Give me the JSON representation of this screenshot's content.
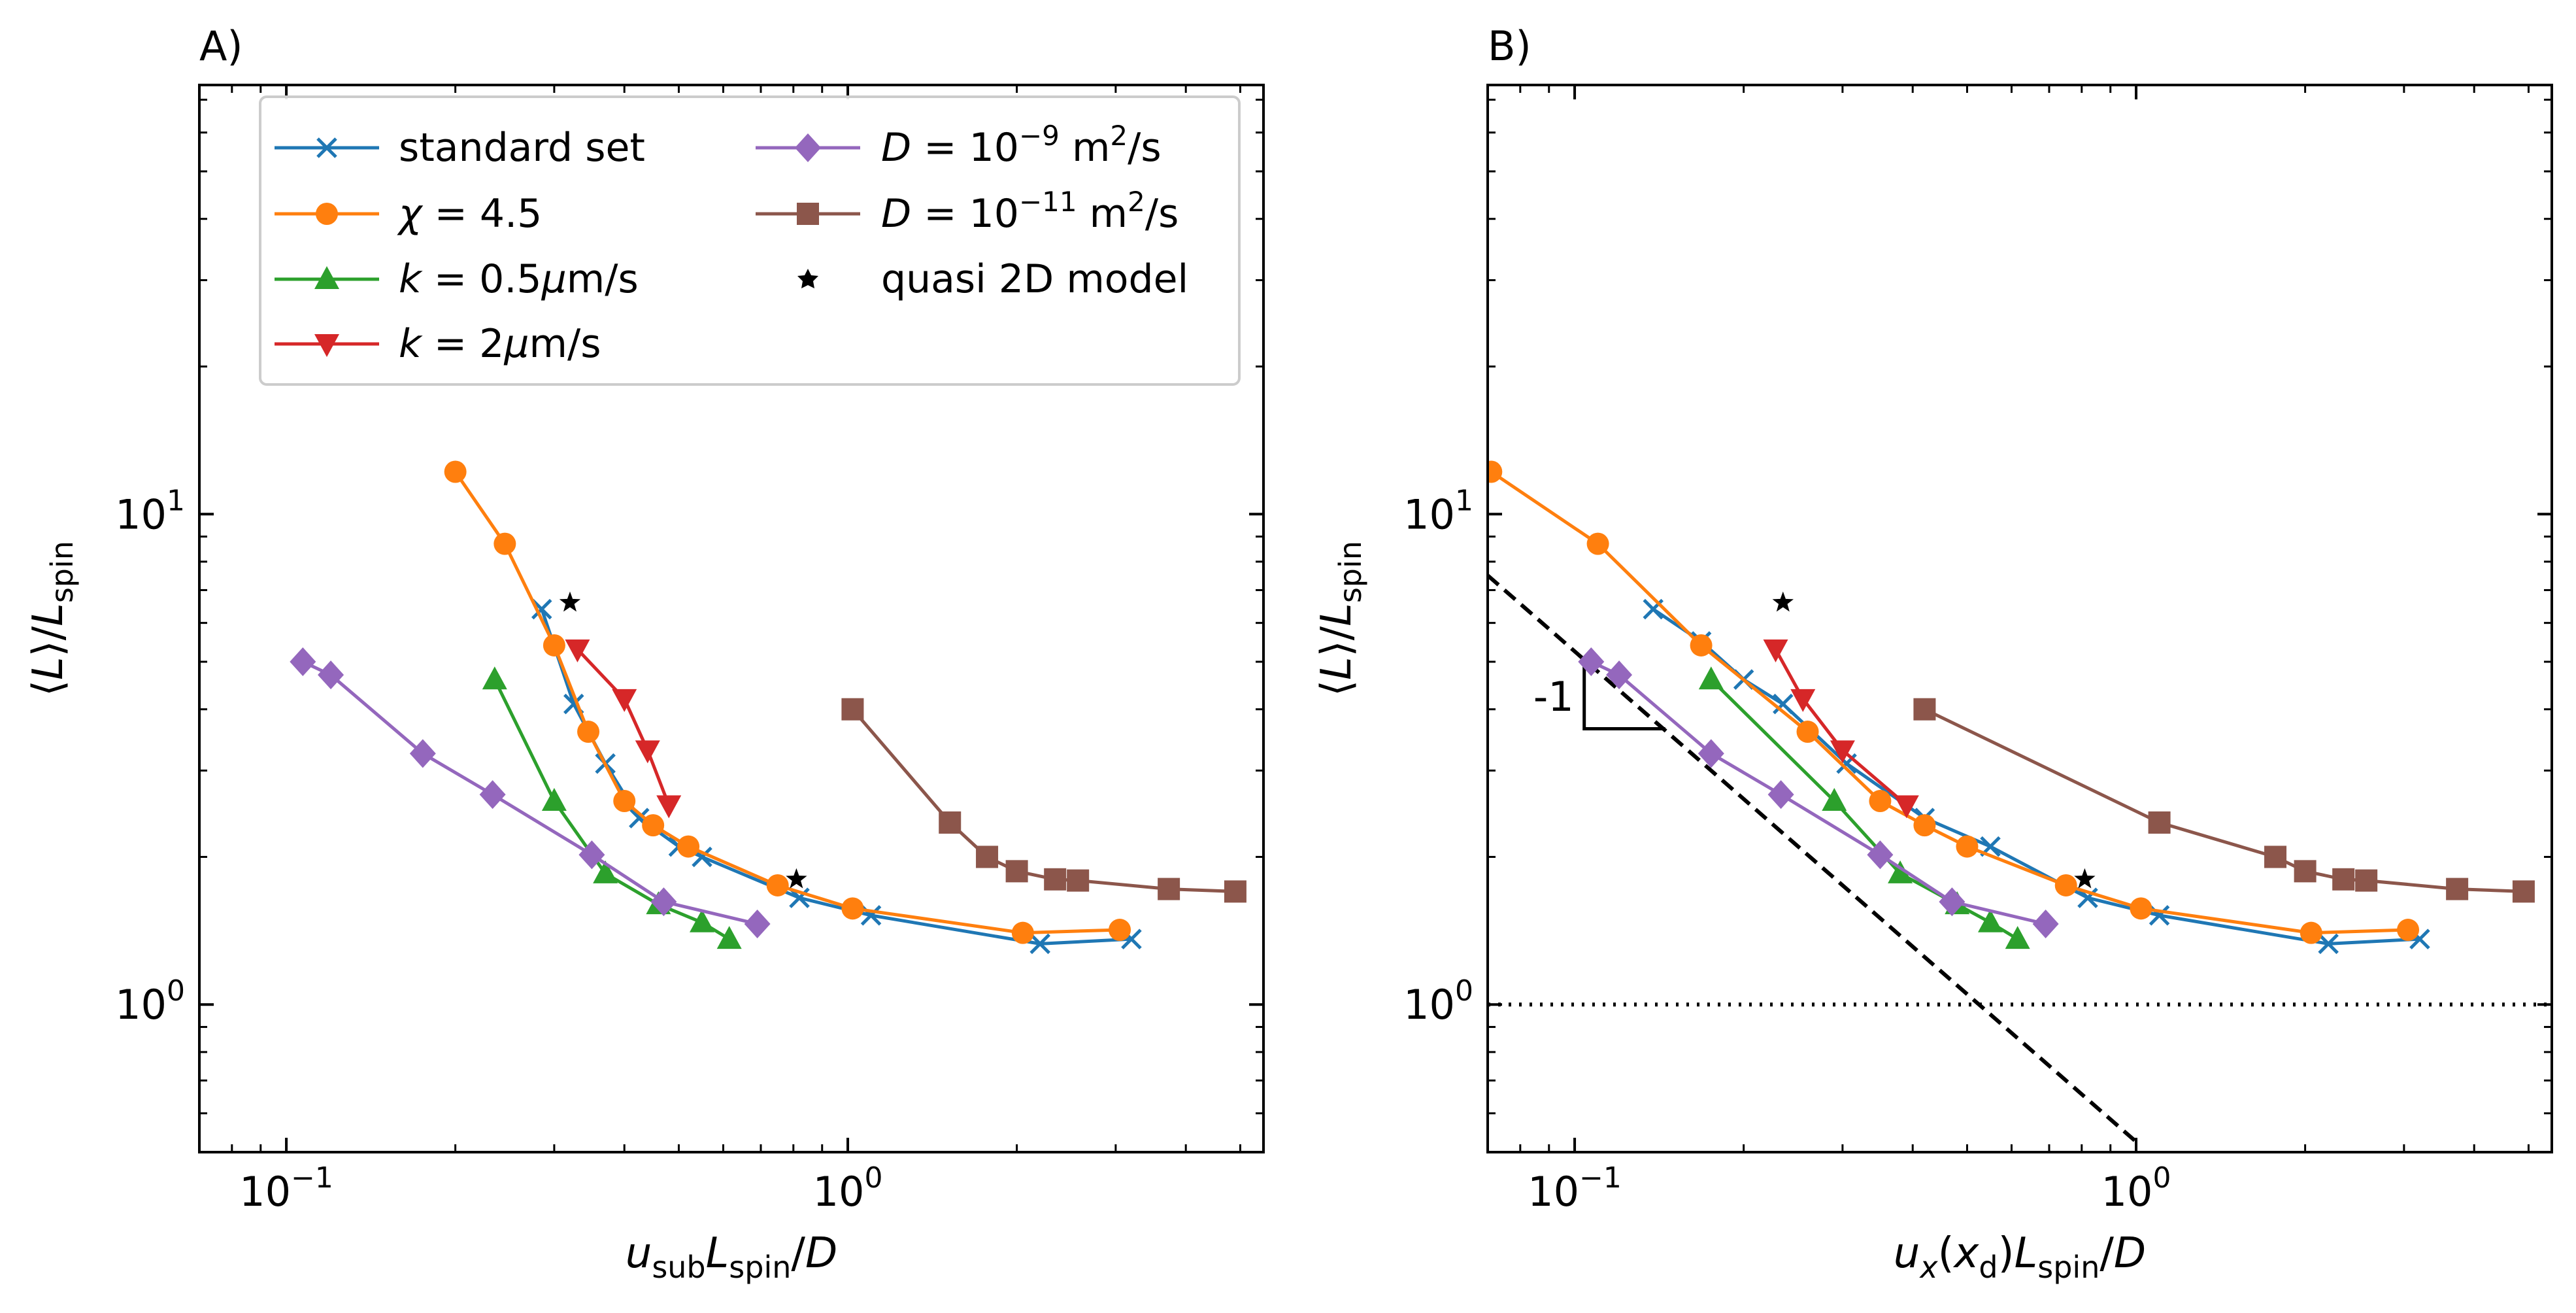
{
  "colors": {
    "standard": "#1f77b4",
    "chi": "#ff7f0e",
    "k05": "#2ca02c",
    "k2": "#d62728",
    "D9": "#9467bd",
    "D11": "#8c564b",
    "quasi": "#000000"
  },
  "chart_data": [
    {
      "type": "line",
      "panel_label": "A)",
      "xscale": "log",
      "yscale": "log",
      "xlim": [
        0.07,
        5.5
      ],
      "ylim": [
        0.5,
        75
      ],
      "xlabel": "u_sub L_spin / D",
      "ylabel": "⟨L⟩/L_spin",
      "xticks": [
        {
          "value": 0.1,
          "label": "10",
          "exp": "−1"
        },
        {
          "value": 1,
          "label": "10",
          "exp": "0"
        }
      ],
      "yticks": [
        {
          "value": 1,
          "label": "10",
          "exp": "0"
        },
        {
          "value": 10,
          "label": "10",
          "exp": "1"
        }
      ],
      "legend_position": "top-left",
      "series": [
        {
          "key": "standard",
          "name": "standard set",
          "marker": "x",
          "x": [
            0.285,
            0.325,
            0.37,
            0.425,
            0.5,
            0.55,
            0.82,
            1.1,
            2.2,
            3.2
          ],
          "y": [
            6.4,
            4.1,
            3.1,
            2.4,
            2.1,
            2.0,
            1.65,
            1.52,
            1.33,
            1.36
          ]
        },
        {
          "key": "chi",
          "name": "χ = 4.5",
          "marker": "circle",
          "x": [
            0.2,
            0.245,
            0.3,
            0.345,
            0.4,
            0.45,
            0.52,
            0.75,
            1.02,
            2.05,
            3.05
          ],
          "y": [
            12.2,
            8.7,
            5.4,
            3.6,
            2.6,
            2.32,
            2.1,
            1.75,
            1.57,
            1.4,
            1.42
          ]
        },
        {
          "key": "k05",
          "name": "k = 0.5μm/s",
          "marker": "triangle-up",
          "x": [
            0.235,
            0.3,
            0.37,
            0.46,
            0.55,
            0.615
          ],
          "y": [
            4.6,
            2.6,
            1.85,
            1.6,
            1.47,
            1.36
          ]
        },
        {
          "key": "k2",
          "name": "k = 2μm/s",
          "marker": "triangle-down",
          "x": [
            0.33,
            0.4,
            0.44,
            0.48
          ],
          "y": [
            5.3,
            4.2,
            3.3,
            2.55
          ]
        },
        {
          "key": "D9",
          "name": "D = 10⁻⁹ m²/s",
          "marker": "diamond",
          "x": [
            0.107,
            0.12,
            0.175,
            0.233,
            0.35,
            0.47,
            0.69
          ],
          "y": [
            5.0,
            4.7,
            3.25,
            2.68,
            2.02,
            1.62,
            1.46
          ]
        },
        {
          "key": "D11",
          "name": "D = 10⁻¹¹ m²/s",
          "marker": "square",
          "x": [
            1.02,
            1.52,
            1.77,
            2.0,
            2.34,
            2.57,
            3.73,
            4.9
          ],
          "y": [
            4.0,
            2.35,
            2.0,
            1.87,
            1.8,
            1.79,
            1.72,
            1.7
          ]
        },
        {
          "key": "quasi",
          "name": "quasi 2D model",
          "marker": "star",
          "x": [
            0.32,
            0.81
          ],
          "y": [
            6.6,
            1.8
          ]
        }
      ]
    },
    {
      "type": "line",
      "panel_label": "B)",
      "xscale": "log",
      "yscale": "log",
      "xlim": [
        0.07,
        5.5
      ],
      "ylim": [
        0.5,
        75
      ],
      "xlabel": "u_x(x_d) L_spin / D",
      "ylabel": "⟨L⟩/L_spin",
      "xticks": [
        {
          "value": 0.1,
          "label": "10",
          "exp": "−1"
        },
        {
          "value": 1,
          "label": "10",
          "exp": "0"
        }
      ],
      "yticks": [
        {
          "value": 1,
          "label": "10",
          "exp": "0"
        },
        {
          "value": 10,
          "label": "10",
          "exp": "1"
        }
      ],
      "annotations": [
        {
          "type": "slope-line",
          "slope": -1,
          "x": [
            0.07,
            1.0
          ],
          "y": [
            7.5,
            0.525
          ],
          "style": "dashed"
        },
        {
          "type": "hline",
          "y": 1.0,
          "style": "dotted"
        },
        {
          "type": "slope-triangle",
          "text": "-1",
          "x": [
            0.104,
            0.145
          ],
          "y": [
            4.95,
            3.65
          ]
        }
      ],
      "series": [
        {
          "key": "standard",
          "name": "standard set",
          "marker": "x",
          "x": [
            0.138,
            0.168,
            0.2,
            0.235,
            0.305,
            0.42,
            0.55,
            0.82,
            1.1,
            2.2,
            3.2
          ],
          "y": [
            6.4,
            5.5,
            4.6,
            4.1,
            3.1,
            2.4,
            2.1,
            1.65,
            1.52,
            1.33,
            1.36
          ]
        },
        {
          "key": "chi",
          "name": "χ = 4.5",
          "marker": "circle",
          "x": [
            0.071,
            0.11,
            0.168,
            0.26,
            0.35,
            0.42,
            0.5,
            0.75,
            1.02,
            2.05,
            3.05
          ],
          "y": [
            12.2,
            8.7,
            5.4,
            3.6,
            2.6,
            2.32,
            2.1,
            1.75,
            1.57,
            1.4,
            1.42
          ]
        },
        {
          "key": "k05",
          "name": "k = 0.5μm/s",
          "marker": "triangle-up",
          "x": [
            0.175,
            0.29,
            0.38,
            0.48,
            0.55,
            0.615
          ],
          "y": [
            4.6,
            2.6,
            1.85,
            1.6,
            1.47,
            1.36
          ]
        },
        {
          "key": "k2",
          "name": "k = 2μm/s",
          "marker": "triangle-down",
          "x": [
            0.228,
            0.255,
            0.3,
            0.39
          ],
          "y": [
            5.3,
            4.2,
            3.3,
            2.55
          ]
        },
        {
          "key": "D9",
          "name": "D = 10⁻⁹ m²/s",
          "marker": "diamond",
          "x": [
            0.107,
            0.12,
            0.175,
            0.233,
            0.35,
            0.47,
            0.69
          ],
          "y": [
            5.0,
            4.7,
            3.25,
            2.68,
            2.02,
            1.62,
            1.46
          ]
        },
        {
          "key": "D11",
          "name": "D = 10⁻¹¹ m²/s",
          "marker": "square",
          "x": [
            0.42,
            1.1,
            1.77,
            2.0,
            2.34,
            2.57,
            3.73,
            4.9
          ],
          "y": [
            4.0,
            2.35,
            2.0,
            1.87,
            1.8,
            1.79,
            1.72,
            1.7
          ]
        },
        {
          "key": "quasi",
          "name": "quasi 2D model",
          "marker": "star",
          "x": [
            0.235,
            0.81
          ],
          "y": [
            6.6,
            1.8
          ]
        }
      ]
    }
  ]
}
